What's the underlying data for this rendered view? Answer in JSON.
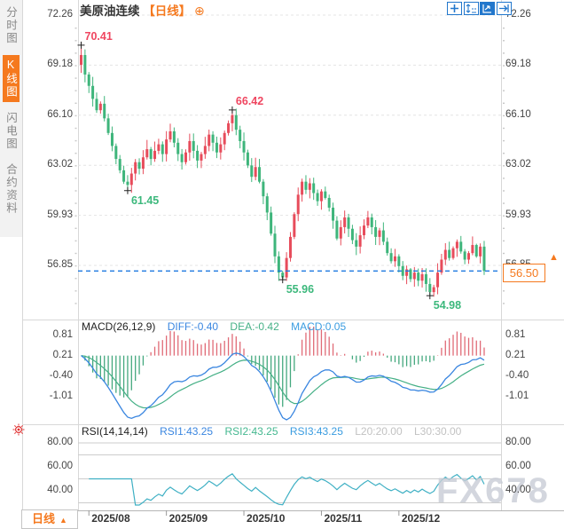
{
  "window": {
    "title": "美原油连续【日线】"
  },
  "sidebar": {
    "tabs": [
      {
        "label": "分时图",
        "active": false
      },
      {
        "label": "K线图",
        "active": true
      },
      {
        "label": "闪电图",
        "active": false
      },
      {
        "label": "合约资料",
        "active": false
      }
    ]
  },
  "header": {
    "title": "美原油连续",
    "period_tag": "【日线】",
    "add_icon": "⊕"
  },
  "toolbar": {
    "icons": [
      "crosshair-tool-icon",
      "axis-scale-icon",
      "auto-fit-icon",
      "go-to-latest-icon"
    ]
  },
  "price_axis": {
    "labels": [
      "72.26",
      "69.18",
      "66.10",
      "63.02",
      "59.93",
      "56.85"
    ]
  },
  "current_price": {
    "value": "56.50",
    "arrow": "▲"
  },
  "macd": {
    "title": "MACD(26,12,9)",
    "items": [
      {
        "text": "DIFF:-0.40",
        "color": "#3a86e0"
      },
      {
        "text": "DEA:-0.42",
        "color": "#45b086"
      },
      {
        "text": "MACD:0.05",
        "color": "#3a9ce0"
      }
    ],
    "axis": [
      "0.81",
      "0.21",
      "-0.40",
      "-1.01"
    ]
  },
  "rsi": {
    "title": "RSI(14,14,14)",
    "items": [
      {
        "text": "RSI1:43.25",
        "color": "#3a86e0"
      },
      {
        "text": "RSI2:43.25",
        "color": "#45b890"
      },
      {
        "text": "RSI3:43.25",
        "color": "#3a9ce0"
      },
      {
        "text": "L20:20.00",
        "color": "#c2c2c2"
      },
      {
        "text": "L30:30.00",
        "color": "#c2c2c2"
      }
    ],
    "axis": [
      "80.00",
      "60.00",
      "40.00"
    ]
  },
  "time_axis": {
    "ticks": [
      {
        "label": "2025/08",
        "day": 2
      },
      {
        "label": "2025/09",
        "day": 22
      },
      {
        "label": "2025/10",
        "day": 42
      },
      {
        "label": "2025/11",
        "day": 62
      },
      {
        "label": "2025/12",
        "day": 82
      }
    ]
  },
  "period_button": {
    "label": "日线",
    "arrow": "▲"
  },
  "watermark": "FX678",
  "colors": {
    "up": "#e74c5b",
    "down": "#3eb57b",
    "hist_up": "#e06a76",
    "hist_down": "#44a87e",
    "diff_line": "#3a86e0",
    "dea_line": "#45b086",
    "rsi_line": "#3fb0c4",
    "current_price_line": "#1f7ae0",
    "accent": "#f5791e",
    "grid": "#e4e4e4",
    "axis_text": "#444444",
    "annotation_high": "#ef4660",
    "annotation_low": "#3cb87c"
  },
  "chart_data": {
    "type": "candlestick",
    "symbol": "美原油连续",
    "period": "日线",
    "y_axis_values": [
      72.26,
      69.18,
      66.1,
      63.02,
      59.93,
      56.85
    ],
    "x_tick_labels": [
      "2025/08",
      "2025/09",
      "2025/10",
      "2025/11",
      "2025/12"
    ],
    "first_open": 69.2,
    "open_rule": "previous-close",
    "closes": [
      69.8,
      68.6,
      67.9,
      67.1,
      66.4,
      66.8,
      65.9,
      65.0,
      64.2,
      63.4,
      62.7,
      62.0,
      61.8,
      62.5,
      63.2,
      62.8,
      63.5,
      64.0,
      63.4,
      63.9,
      64.3,
      63.7,
      64.6,
      65.1,
      64.4,
      63.7,
      63.2,
      63.8,
      64.5,
      63.9,
      63.3,
      63.7,
      64.2,
      64.9,
      64.4,
      63.8,
      64.3,
      65.0,
      65.6,
      66.1,
      65.2,
      64.5,
      63.8,
      63.0,
      62.3,
      62.9,
      62.0,
      61.1,
      60.1,
      58.8,
      57.4,
      56.4,
      56.1,
      57.3,
      58.6,
      60.0,
      61.2,
      62.0,
      61.5,
      61.9,
      61.3,
      60.8,
      61.4,
      61.0,
      60.4,
      59.6,
      58.5,
      59.2,
      59.8,
      59.1,
      58.4,
      58.0,
      58.7,
      59.3,
      59.8,
      59.2,
      58.6,
      59.0,
      58.3,
      57.6,
      57.1,
      57.4,
      56.8,
      56.2,
      56.6,
      56.0,
      56.4,
      55.9,
      56.3,
      55.7,
      55.2,
      55.5,
      56.4,
      57.2,
      57.8,
      57.3,
      57.9,
      58.3,
      57.7,
      57.2,
      57.6,
      58.1,
      57.4,
      58.0,
      56.5
    ],
    "annotated_extremes": [
      {
        "day": 0,
        "kind": "high",
        "value": 70.41,
        "label": "70.41"
      },
      {
        "day": 12,
        "kind": "low",
        "value": 61.45,
        "label": "61.45"
      },
      {
        "day": 39,
        "kind": "high",
        "value": 66.42,
        "label": "66.42"
      },
      {
        "day": 52,
        "kind": "low",
        "value": 55.96,
        "label": "55.96"
      },
      {
        "day": 90,
        "kind": "low",
        "value": 54.98,
        "label": "54.98"
      }
    ],
    "last_price": 56.5,
    "indicators": {
      "macd": {
        "params": [
          26,
          12,
          9
        ],
        "diff": -0.4,
        "dea": -0.42,
        "macd": 0.05,
        "axis_values": [
          0.81,
          0.21,
          -0.4,
          -1.01
        ]
      },
      "rsi": {
        "params": [
          14,
          14,
          14
        ],
        "rsi1": 43.25,
        "rsi2": 43.25,
        "rsi3": 43.25,
        "l20": 20.0,
        "l30": 30.0,
        "axis_values": [
          80.0,
          60.0,
          40.0
        ],
        "level_lines": [
          80,
          70,
          50,
          30
        ]
      }
    }
  }
}
